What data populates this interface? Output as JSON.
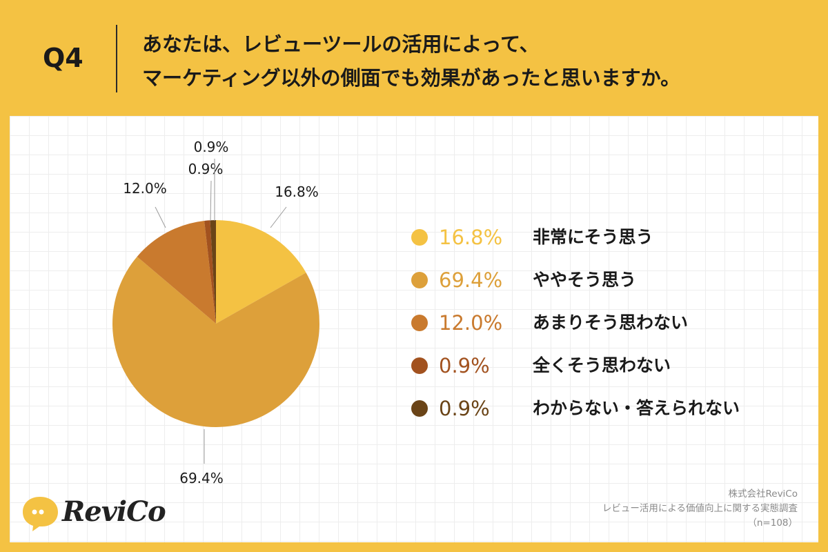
{
  "question": {
    "number": "Q4",
    "line1": "あなたは、レビューツールの活用によって、",
    "line2": "マーケティング以外の側面でも効果があったと思いますか。"
  },
  "chart_data": {
    "type": "pie",
    "categories": [
      "非常にそう思う",
      "ややそう思う",
      "あまりそう思わない",
      "全くそう思わない",
      "わからない・答えられない"
    ],
    "values": [
      16.8,
      69.4,
      12.0,
      0.9,
      0.9
    ],
    "labels": [
      "16.8%",
      "69.4%",
      "12.0%",
      "0.9%",
      "0.9%"
    ],
    "colors": [
      "#f4c243",
      "#dda03a",
      "#c97a2e",
      "#a2521f",
      "#6a4417"
    ],
    "start": "12 o'clock, clockwise",
    "legend_position": "right"
  },
  "legend": [
    {
      "pct": "16.8%",
      "label": "非常にそう思う",
      "color": "#f4c243"
    },
    {
      "pct": "69.4%",
      "label": "ややそう思う",
      "color": "#dda03a"
    },
    {
      "pct": "12.0%",
      "label": "あまりそう思わない",
      "color": "#c97a2e"
    },
    {
      "pct": "0.9%",
      "label": "全くそう思わない",
      "color": "#a2521f"
    },
    {
      "pct": "0.9%",
      "label": "わからない・答えられない",
      "color": "#6a4417"
    }
  ],
  "source": {
    "company": "株式会社ReviCo",
    "survey": "レビュー活用による価値向上に関する実態調査",
    "sample": "（n=108）"
  },
  "logo": {
    "text": "ReviCo",
    "icon": "speech-bubble-icon"
  }
}
